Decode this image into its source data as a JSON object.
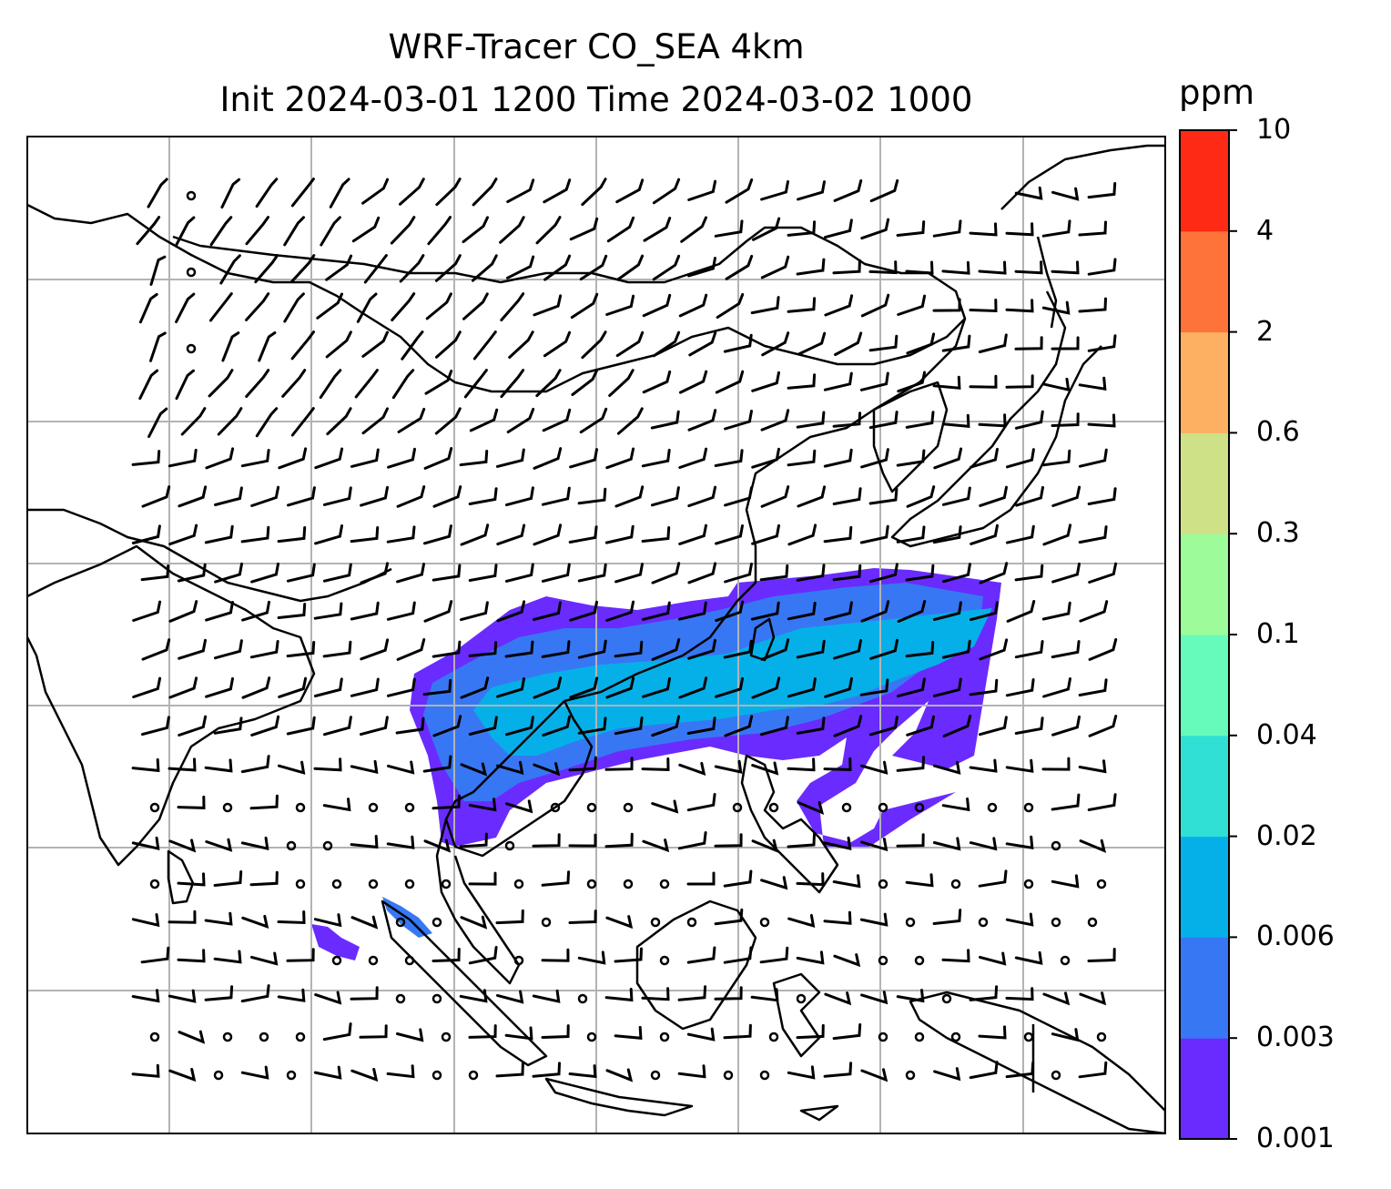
{
  "title": {
    "line1": "WRF-Tracer CO_SEA 4km",
    "line2": "Init 2024-03-01 1200 Time 2024-03-02 1000"
  },
  "colorbar": {
    "unit": "ppm",
    "levels": [
      "0.001",
      "0.003",
      "0.006",
      "0.02",
      "0.04",
      "0.1",
      "0.3",
      "0.6",
      "2",
      "4",
      "10"
    ],
    "colors": [
      "#6a2bff",
      "#3777f4",
      "#05b0e9",
      "#30e0d4",
      "#66fbbb",
      "#9dfb9a",
      "#cfe187",
      "#fdb062",
      "#fe733a",
      "#ff2a15"
    ]
  },
  "map": {
    "region": "Southeast Asia",
    "gridlines": true,
    "tracer": "CO_SEA",
    "plume_colors": [
      "#6a2bff",
      "#3777f4",
      "#05b0e9"
    ],
    "icons": [
      "wind-barb-icon",
      "calm-wind-circle-icon"
    ]
  }
}
